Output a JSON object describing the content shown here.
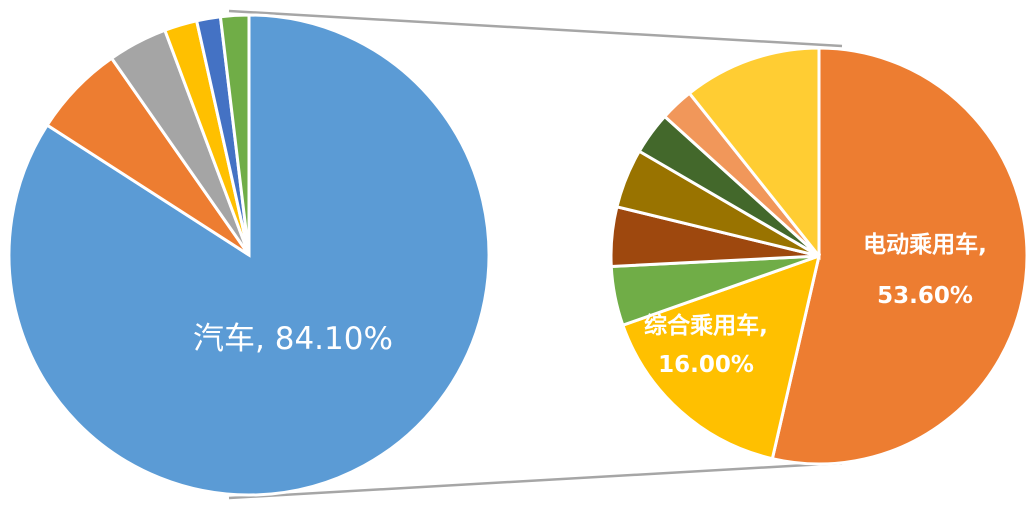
{
  "chart_data": [
    {
      "type": "pie",
      "slices": [
        {
          "label": "汽车",
          "value": 84.1,
          "color": "#5B9BD5",
          "data_label": "汽车, 84.10%"
        },
        {
          "label": "",
          "value": 6.2,
          "color": "#ED7D31",
          "data_label": ""
        },
        {
          "label": "",
          "value": 4.0,
          "color": "#A5A5A5",
          "data_label": ""
        },
        {
          "label": "",
          "value": 2.2,
          "color": "#FFC000",
          "data_label": ""
        },
        {
          "label": "",
          "value": 1.6,
          "color": "#4472C4",
          "data_label": ""
        },
        {
          "label": "",
          "value": 1.9,
          "color": "#70AD47",
          "data_label": ""
        }
      ]
    },
    {
      "type": "pie",
      "slices": [
        {
          "label": "电动乘用车",
          "value": 53.6,
          "color": "#ED7D31",
          "data_label_line1": "电动乘用车,",
          "data_label_line2": "53.60%"
        },
        {
          "label": "综合乘用车",
          "value": 16.0,
          "color": "#FFC000",
          "data_label_line1": "综合乘用车,",
          "data_label_line2": "16.00%"
        },
        {
          "label": "",
          "value": 4.6,
          "color": "#70AD47",
          "data_label_line1": "",
          "data_label_line2": ""
        },
        {
          "label": "",
          "value": 4.6,
          "color": "#9E480E",
          "data_label_line1": "",
          "data_label_line2": ""
        },
        {
          "label": "",
          "value": 4.6,
          "color": "#997300",
          "data_label_line1": "",
          "data_label_line2": ""
        },
        {
          "label": "",
          "value": 3.3,
          "color": "#43682B",
          "data_label_line1": "",
          "data_label_line2": ""
        },
        {
          "label": "",
          "value": 2.6,
          "color": "#F1975A",
          "data_label_line1": "",
          "data_label_line2": ""
        },
        {
          "label": "",
          "value": 10.7,
          "color": "#FFCD33",
          "data_label_line1": "",
          "data_label_line2": ""
        }
      ]
    }
  ]
}
